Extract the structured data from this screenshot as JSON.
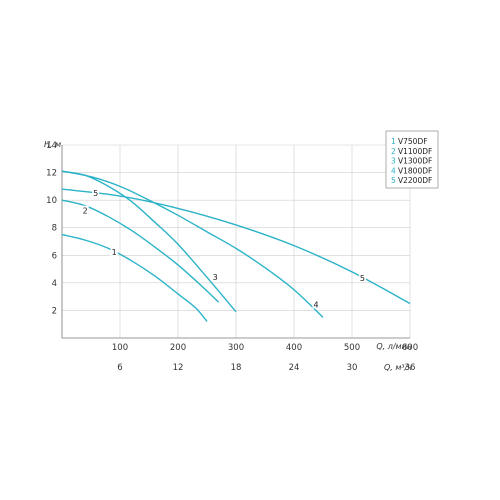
{
  "chart_data": {
    "type": "line",
    "ylabel": "H, м",
    "xlabel": "Q, л/мин",
    "x2label": "Q, м³/ч",
    "xlim": [
      0,
      600
    ],
    "ylim": [
      0,
      14
    ],
    "x_ticks": [
      "100",
      "200",
      "300",
      "400",
      "500",
      "600"
    ],
    "x_tick_values": [
      100,
      200,
      300,
      400,
      500,
      600
    ],
    "x2_ticks": [
      "6",
      "12",
      "18",
      "24",
      "30",
      "36"
    ],
    "x2_tick_values": [
      100,
      200,
      300,
      400,
      500,
      600
    ],
    "y_ticks": [
      "2",
      "4",
      "6",
      "8",
      "10",
      "12",
      "14"
    ],
    "y_tick_values": [
      2,
      4,
      6,
      8,
      10,
      12,
      14
    ],
    "grid": true,
    "legend_position": "top-right",
    "series_color": "#2bb3c8",
    "legend_number_color": "#2bb3c8",
    "series": [
      {
        "name": "V750DF",
        "label": "1",
        "x": [
          0,
          40,
          80,
          120,
          160,
          200,
          230,
          250
        ],
        "y": [
          7.5,
          7.1,
          6.5,
          5.6,
          4.5,
          3.2,
          2.2,
          1.2
        ]
      },
      {
        "name": "V1100DF",
        "label": "2",
        "x": [
          0,
          40,
          80,
          120,
          160,
          200,
          240,
          270
        ],
        "y": [
          10.0,
          9.6,
          8.8,
          7.8,
          6.6,
          5.3,
          3.8,
          2.6
        ]
      },
      {
        "name": "V1300DF",
        "label": "3",
        "x": [
          0,
          40,
          80,
          120,
          160,
          200,
          250,
          300
        ],
        "y": [
          12.1,
          11.8,
          11.0,
          9.9,
          8.4,
          6.8,
          4.4,
          1.9
        ]
      },
      {
        "name": "V1800DF",
        "label": "4",
        "x": [
          0,
          50,
          100,
          150,
          200,
          250,
          300,
          350,
          400,
          450
        ],
        "y": [
          12.1,
          11.7,
          11.0,
          10.0,
          8.9,
          7.7,
          6.5,
          5.1,
          3.5,
          1.5
        ]
      },
      {
        "name": "V2200DF",
        "label": "5",
        "x": [
          0,
          100,
          200,
          300,
          400,
          500,
          600
        ],
        "y": [
          10.8,
          10.3,
          9.4,
          8.2,
          6.7,
          4.8,
          2.5
        ]
      }
    ],
    "curve_labels": [
      {
        "series": 0,
        "x": 90,
        "y": 6.2
      },
      {
        "series": 1,
        "x": 40,
        "y": 9.2
      },
      {
        "series": 2,
        "x": 264,
        "y": 4.4
      },
      {
        "series": 3,
        "x": 438,
        "y": 2.4
      },
      {
        "series": 4,
        "x": 518,
        "y": 4.3
      }
    ],
    "top_label": {
      "series": 4,
      "x": 58,
      "y": 10.5
    }
  }
}
